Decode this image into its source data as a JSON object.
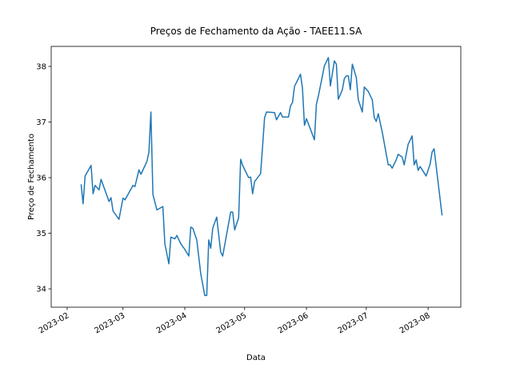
{
  "chart_data": {
    "type": "line",
    "title": "Preços de Fechamento da Ação - TAEE11.SA",
    "xlabel": "Data",
    "ylabel": "Preço de Fechamento",
    "color": "#1f77b4",
    "x": [
      19396,
      19397,
      19398,
      19401,
      19402,
      19403,
      19405,
      19406,
      19410,
      19411,
      19412,
      19415,
      19417,
      19418,
      19422,
      19423,
      19425,
      19426,
      19429,
      19430,
      19431,
      19432,
      19434,
      19437,
      19438,
      19440,
      19441,
      19443,
      19444,
      19446,
      19448,
      19450,
      19451,
      19452,
      19454,
      19456,
      19458,
      19459,
      19460,
      19461,
      19462,
      19464,
      19466,
      19467,
      19471,
      19472,
      19473,
      19475,
      19476,
      19477,
      19480,
      19481,
      19482,
      19483,
      19486,
      19487,
      19488,
      19489,
      19493,
      19494,
      19496,
      19497,
      19500,
      19501,
      19502,
      19503,
      19506,
      19507,
      19508,
      19509,
      19513,
      19514,
      19515,
      19518,
      19520,
      19521,
      19523,
      19524,
      19525,
      19527,
      19528,
      19529,
      19530,
      19531,
      19532,
      19534,
      19535,
      19537,
      19538,
      19540,
      19542,
      19543,
      19544,
      19545,
      19547,
      19550,
      19551,
      19552,
      19554,
      19555,
      19557,
      19558,
      19560,
      19562,
      19563,
      19564,
      19565,
      19566,
      19569,
      19571,
      19572,
      19573,
      19577
    ],
    "values": [
      35.88,
      35.53,
      36.03,
      36.22,
      35.71,
      35.86,
      35.78,
      35.97,
      35.57,
      35.64,
      35.4,
      35.25,
      35.63,
      35.6,
      35.86,
      35.84,
      36.14,
      36.06,
      36.29,
      36.46,
      37.18,
      35.7,
      35.42,
      35.48,
      34.81,
      34.45,
      34.93,
      34.9,
      34.96,
      34.81,
      34.71,
      34.59,
      35.11,
      35.09,
      34.88,
      34.27,
      33.88,
      33.88,
      34.88,
      34.73,
      35.09,
      35.29,
      34.66,
      34.59,
      35.38,
      35.38,
      35.06,
      35.28,
      36.33,
      36.22,
      36.0,
      36.01,
      35.71,
      35.93,
      36.07,
      36.56,
      37.08,
      37.18,
      37.17,
      37.04,
      37.17,
      37.09,
      37.09,
      37.29,
      37.35,
      37.64,
      37.86,
      37.61,
      36.94,
      37.06,
      36.68,
      37.32,
      37.47,
      38.01,
      38.16,
      37.65,
      38.1,
      38.04,
      37.41,
      37.58,
      37.78,
      37.83,
      37.83,
      37.58,
      38.04,
      37.8,
      37.4,
      37.18,
      37.63,
      37.55,
      37.4,
      37.08,
      37.01,
      37.15,
      36.82,
      36.23,
      36.23,
      36.17,
      36.32,
      36.42,
      36.37,
      36.23,
      36.6,
      36.75,
      36.23,
      36.32,
      36.13,
      36.2,
      36.03,
      36.24,
      36.46,
      36.52,
      35.32
    ],
    "xlim": [
      19381.0,
      19586.4
    ],
    "ylim": [
      33.67,
      38.36
    ],
    "xticks": [
      {
        "value": 19389,
        "label": "2023-02"
      },
      {
        "value": 19417,
        "label": "2023-03"
      },
      {
        "value": 19448,
        "label": "2023-04"
      },
      {
        "value": 19478,
        "label": "2023-05"
      },
      {
        "value": 19509,
        "label": "2023-06"
      },
      {
        "value": 19539,
        "label": "2023-07"
      },
      {
        "value": 19570,
        "label": "2023-08"
      }
    ],
    "yticks": [
      34,
      35,
      36,
      37,
      38
    ]
  }
}
